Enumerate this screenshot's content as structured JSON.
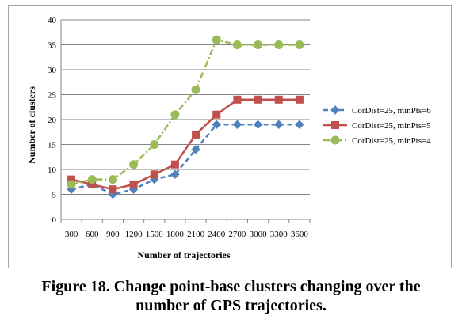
{
  "chart_data": {
    "type": "line",
    "xlabel": "Number of trajectories",
    "ylabel": "Number of clusters",
    "categories": [
      "300",
      "600",
      "900",
      "1200",
      "1500",
      "1800",
      "2100",
      "2400",
      "2700",
      "3000",
      "3300",
      "3600"
    ],
    "ylim": [
      0,
      40
    ],
    "yticks": [
      0,
      5,
      10,
      15,
      20,
      25,
      30,
      35,
      40
    ],
    "grid": true,
    "legend_position": "right",
    "series": [
      {
        "name": "CorDist=25, minPts=6",
        "color": "#4f81bd",
        "marker": "diamond",
        "line_style": "dashed",
        "values": [
          6,
          7,
          5,
          6,
          8,
          9,
          14,
          19,
          19,
          19,
          19,
          19
        ]
      },
      {
        "name": "CorDist=25, minPts=5",
        "color": "#c0504d",
        "marker": "square",
        "line_style": "solid",
        "values": [
          8,
          7,
          6,
          7,
          9,
          11,
          17,
          21,
          24,
          24,
          24,
          24
        ]
      },
      {
        "name": "CorDist=25, minPts=4",
        "color": "#9bbb59",
        "marker": "circle",
        "line_style": "dashdot",
        "values": [
          7,
          8,
          8,
          11,
          15,
          21,
          26,
          36,
          35,
          35,
          35,
          35
        ]
      }
    ]
  },
  "caption": {
    "line1": "Figure 18. Change point-base clusters changing over the",
    "line2": "number of GPS trajectories."
  }
}
